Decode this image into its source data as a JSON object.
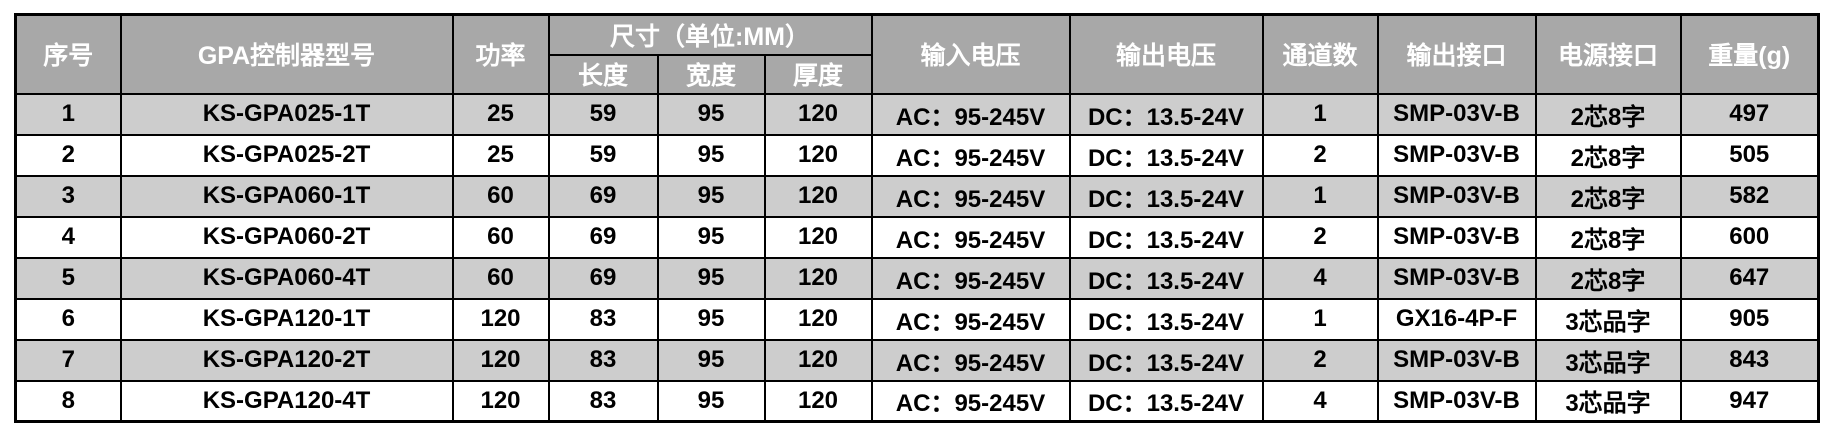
{
  "table": {
    "colors": {
      "header_bg": "#a8a8a8",
      "row_alt_bg": "#cdcdcd",
      "row_bg": "#ffffff",
      "border": "#000000",
      "header_text": "#ffffff",
      "body_text": "#000000"
    },
    "headers": {
      "col_serial": "序号",
      "col_model": "GPA控制器型号",
      "col_power": "功率",
      "col_dimensions_group": "尺寸（单位:MM）",
      "col_length": "长度",
      "col_width": "宽度",
      "col_thickness": "厚度",
      "col_input_voltage": "输入电压",
      "col_output_voltage": "输出电压",
      "col_channels": "通道数",
      "col_output_interface": "输出接口",
      "col_power_interface": "电源接口",
      "col_weight": "重量(g)"
    },
    "rows": [
      [
        "1",
        "KS-GPA025-1T",
        "25",
        "59",
        "95",
        "120",
        "AC：95-245V",
        "DC：13.5-24V",
        "1",
        "SMP-03V-B",
        "2芯8字",
        "497"
      ],
      [
        "2",
        "KS-GPA025-2T",
        "25",
        "59",
        "95",
        "120",
        "AC：95-245V",
        "DC：13.5-24V",
        "2",
        "SMP-03V-B",
        "2芯8字",
        "505"
      ],
      [
        "3",
        "KS-GPA060-1T",
        "60",
        "69",
        "95",
        "120",
        "AC：95-245V",
        "DC：13.5-24V",
        "1",
        "SMP-03V-B",
        "2芯8字",
        "582"
      ],
      [
        "4",
        "KS-GPA060-2T",
        "60",
        "69",
        "95",
        "120",
        "AC：95-245V",
        "DC：13.5-24V",
        "2",
        "SMP-03V-B",
        "2芯8字",
        "600"
      ],
      [
        "5",
        "KS-GPA060-4T",
        "60",
        "69",
        "95",
        "120",
        "AC：95-245V",
        "DC：13.5-24V",
        "4",
        "SMP-03V-B",
        "2芯8字",
        "647"
      ],
      [
        "6",
        "KS-GPA120-1T",
        "120",
        "83",
        "95",
        "120",
        "AC：95-245V",
        "DC：13.5-24V",
        "1",
        "GX16-4P-F",
        "3芯品字",
        "905"
      ],
      [
        "7",
        "KS-GPA120-2T",
        "120",
        "83",
        "95",
        "120",
        "AC：95-245V",
        "DC：13.5-24V",
        "2",
        "SMP-03V-B",
        "3芯品字",
        "843"
      ],
      [
        "8",
        "KS-GPA120-4T",
        "120",
        "83",
        "95",
        "120",
        "AC：95-245V",
        "DC：13.5-24V",
        "4",
        "SMP-03V-B",
        "3芯品字",
        "947"
      ]
    ]
  }
}
